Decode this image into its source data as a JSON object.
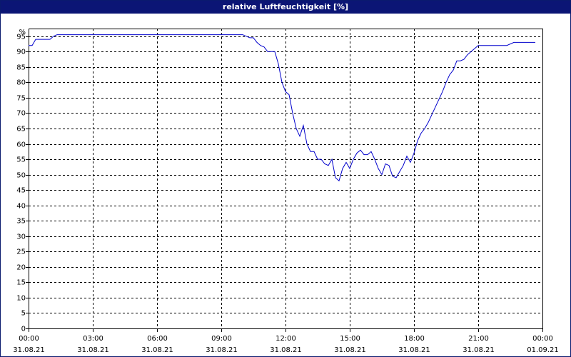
{
  "chart_data": {
    "type": "line",
    "title": "relative Luftfeuchtigkeit [%]",
    "ylabel": "%",
    "xlabel": "",
    "ylim": [
      0,
      97.5
    ],
    "yticks": [
      0,
      5,
      10,
      15,
      20,
      25,
      30,
      35,
      40,
      45,
      50,
      55,
      60,
      65,
      70,
      75,
      80,
      85,
      90,
      95
    ],
    "xlim": [
      "31.08.21 00:00",
      "01.09.21 00:00"
    ],
    "xticks": [
      {
        "time": "00:00",
        "date": "31.08.21"
      },
      {
        "time": "03:00",
        "date": "31.08.21"
      },
      {
        "time": "06:00",
        "date": "31.08.21"
      },
      {
        "time": "09:00",
        "date": "31.08.21"
      },
      {
        "time": "12:00",
        "date": "31.08.21"
      },
      {
        "time": "15:00",
        "date": "31.08.21"
      },
      {
        "time": "18:00",
        "date": "31.08.21"
      },
      {
        "time": "21:00",
        "date": "31.08.21"
      },
      {
        "time": "00:00",
        "date": "01.09.21"
      }
    ],
    "grid": true,
    "colors": {
      "line": "#0000cc",
      "title_bg": "#0b1575",
      "grid": "#000000"
    },
    "series": [
      {
        "x": [
          "00:00",
          "00:10",
          "00:20",
          "00:40",
          "01:00",
          "01:10",
          "01:20",
          "01:30",
          "02:00",
          "03:00",
          "04:00",
          "05:00",
          "06:00",
          "07:00",
          "08:00",
          "09:00",
          "10:00",
          "10:10",
          "10:20",
          "10:30",
          "10:40",
          "10:50",
          "11:00",
          "11:10",
          "11:20",
          "11:30",
          "11:40",
          "11:50",
          "12:00",
          "12:10",
          "12:20",
          "12:30",
          "12:40",
          "12:50",
          "13:00",
          "13:10",
          "13:20",
          "13:30",
          "13:40",
          "13:50",
          "14:00",
          "14:10",
          "14:20",
          "14:30",
          "14:40",
          "14:50",
          "15:00",
          "15:10",
          "15:20",
          "15:30",
          "15:40",
          "15:50",
          "16:00",
          "16:10",
          "16:20",
          "16:30",
          "16:40",
          "16:50",
          "17:00",
          "17:10",
          "17:20",
          "17:30",
          "17:40",
          "17:50",
          "18:00",
          "18:10",
          "18:20",
          "18:30",
          "18:40",
          "18:50",
          "19:00",
          "19:10",
          "19:20",
          "19:30",
          "19:40",
          "19:50",
          "20:00",
          "20:10",
          "20:20",
          "20:30",
          "20:40",
          "20:50",
          "21:00",
          "21:10",
          "21:20",
          "21:30",
          "21:40",
          "22:00",
          "22:20",
          "22:40",
          "23:00",
          "23:20",
          "23:40"
        ],
        "y": [
          92,
          92,
          94,
          94,
          94,
          95,
          95.5,
          95.5,
          95.5,
          95.5,
          95.5,
          95.5,
          95.5,
          95.5,
          95.5,
          95.5,
          95.5,
          95,
          94.5,
          94.5,
          93,
          92,
          91.5,
          90,
          90,
          90,
          86,
          80,
          77,
          76,
          70,
          65,
          62.5,
          66,
          60,
          57.5,
          57.5,
          55,
          55,
          53.5,
          53,
          55,
          49,
          48,
          52,
          54,
          52,
          55,
          57,
          58,
          56.5,
          56.5,
          57.5,
          55,
          52,
          50,
          53.5,
          53,
          49.5,
          49,
          51,
          53,
          56,
          54,
          57,
          61,
          63.5,
          65,
          67,
          69.5,
          72,
          74.5,
          77,
          80,
          82.5,
          84,
          87,
          87,
          87.5,
          89,
          90,
          91,
          92,
          92,
          92,
          92,
          92,
          92,
          92,
          93,
          93,
          93,
          93
        ]
      }
    ]
  }
}
